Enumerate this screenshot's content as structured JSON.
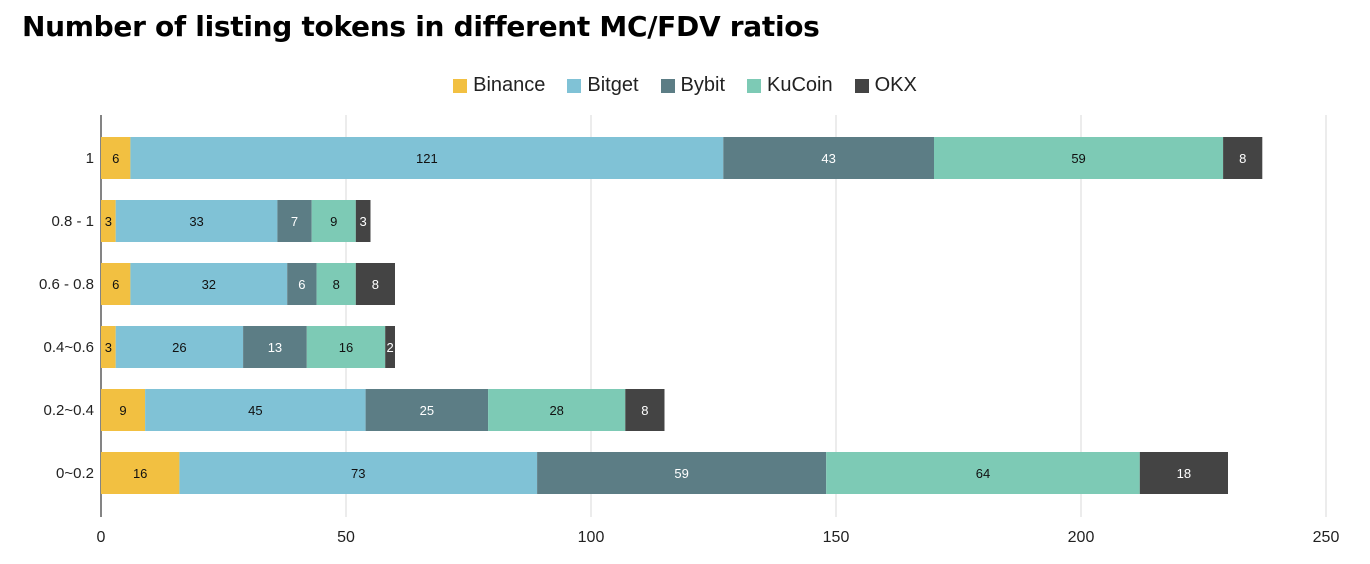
{
  "chart_data": {
    "type": "bar",
    "orientation": "horizontal",
    "stacked": true,
    "title": "Number of listing tokens in different MC/FDV ratios",
    "categories": [
      "1",
      "0.8 - 1",
      "0.6 - 0.8",
      "0.4~0.6",
      "0.2~0.4",
      "0~0.2"
    ],
    "series": [
      {
        "name": "Binance",
        "color": "#f2c041",
        "values": [
          6,
          3,
          6,
          3,
          9,
          16
        ]
      },
      {
        "name": "Bitget",
        "color": "#80c2d6",
        "values": [
          121,
          33,
          32,
          26,
          45,
          73
        ]
      },
      {
        "name": "Bybit",
        "color": "#5c7d85",
        "values": [
          43,
          7,
          6,
          13,
          25,
          59
        ]
      },
      {
        "name": "KuCoin",
        "color": "#7dcab5",
        "values": [
          59,
          9,
          8,
          16,
          28,
          64
        ]
      },
      {
        "name": "OKX",
        "color": "#444444",
        "values": [
          8,
          3,
          8,
          2,
          8,
          18
        ]
      }
    ],
    "xlim": [
      0,
      250
    ],
    "xticks": [
      0,
      50,
      100,
      150,
      200,
      250
    ],
    "xlabel": "",
    "ylabel": "",
    "grid": "vertical",
    "legend_position": "top-center"
  }
}
